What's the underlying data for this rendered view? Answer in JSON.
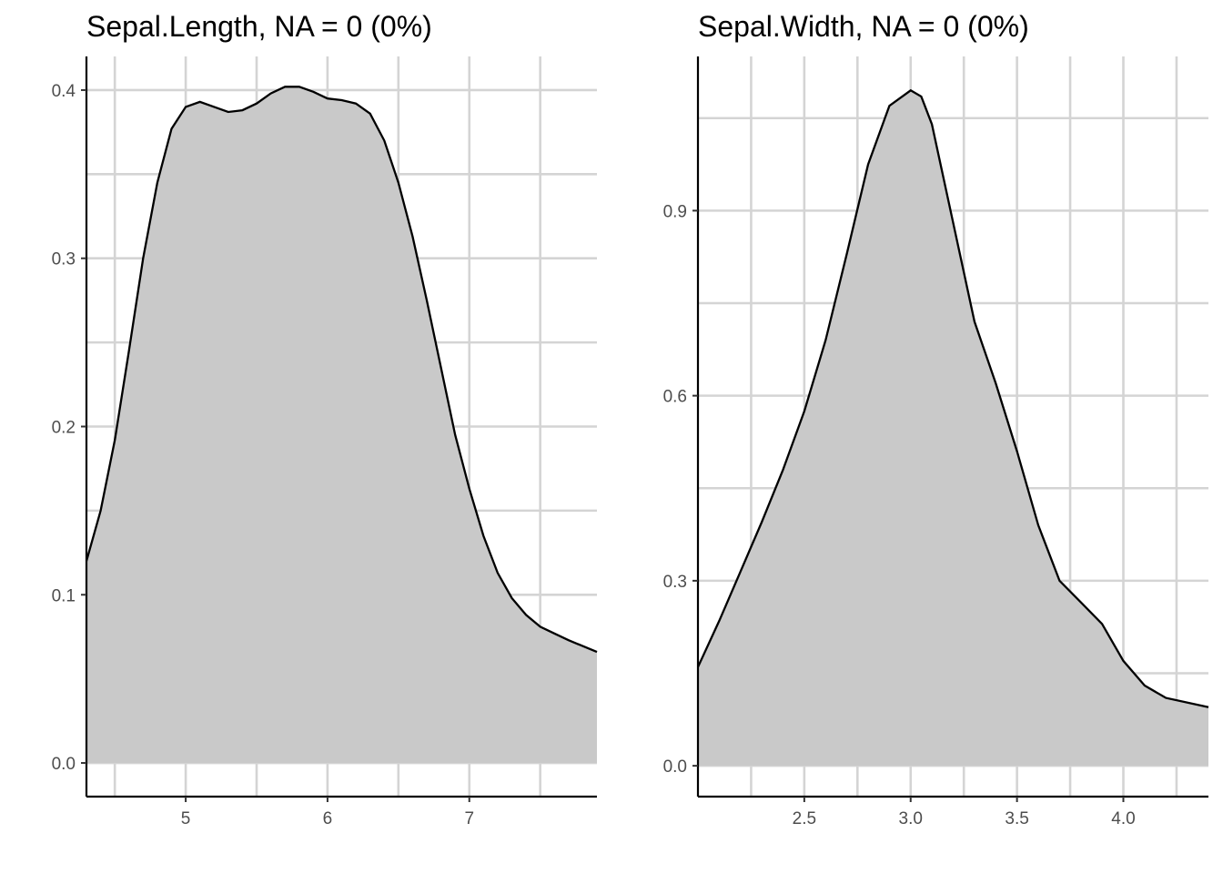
{
  "chart_data": [
    {
      "type": "area",
      "title": "Sepal.Length, NA = 0 (0%)",
      "xlabel": "",
      "ylabel": "",
      "xlim": [
        4.3,
        7.9
      ],
      "ylim": [
        -0.02,
        0.42
      ],
      "x_ticks": [
        5,
        6,
        7
      ],
      "x_tick_labels": [
        "5",
        "6",
        "7"
      ],
      "y_ticks": [
        0.0,
        0.1,
        0.2,
        0.3,
        0.4
      ],
      "y_tick_labels": [
        "0.0",
        "0.1",
        "0.2",
        "0.3",
        "0.4"
      ],
      "grid": true,
      "fill_color": "#c9c9c9",
      "line_color": "#000000",
      "series": [
        {
          "x": [
            4.3,
            4.4,
            4.5,
            4.6,
            4.7,
            4.8,
            4.9,
            5.0,
            5.1,
            5.2,
            5.3,
            5.4,
            5.5,
            5.6,
            5.7,
            5.8,
            5.9,
            6.0,
            6.1,
            6.2,
            6.3,
            6.4,
            6.5,
            6.6,
            6.7,
            6.8,
            6.9,
            7.0,
            7.1,
            7.2,
            7.3,
            7.4,
            7.5,
            7.6,
            7.7,
            7.9
          ],
          "y": [
            0.12,
            0.15,
            0.192,
            0.245,
            0.3,
            0.345,
            0.377,
            0.39,
            0.393,
            0.39,
            0.387,
            0.388,
            0.392,
            0.398,
            0.402,
            0.402,
            0.399,
            0.395,
            0.394,
            0.392,
            0.386,
            0.37,
            0.345,
            0.313,
            0.275,
            0.235,
            0.195,
            0.163,
            0.135,
            0.113,
            0.098,
            0.088,
            0.081,
            0.077,
            0.073,
            0.066
          ]
        }
      ]
    },
    {
      "type": "area",
      "title": "Sepal.Width, NA = 0 (0%)",
      "xlabel": "",
      "ylabel": "",
      "xlim": [
        2.0,
        4.4
      ],
      "ylim": [
        -0.05,
        1.15
      ],
      "x_ticks": [
        2.5,
        3.0,
        3.5,
        4.0
      ],
      "x_tick_labels": [
        "2.5",
        "3.0",
        "3.5",
        "4.0"
      ],
      "y_ticks": [
        0.0,
        0.3,
        0.6,
        0.9
      ],
      "y_tick_labels": [
        "0.0",
        "0.3",
        "0.6",
        "0.9"
      ],
      "grid": true,
      "fill_color": "#c9c9c9",
      "line_color": "#000000",
      "series": [
        {
          "x": [
            2.0,
            2.1,
            2.2,
            2.3,
            2.4,
            2.5,
            2.6,
            2.7,
            2.8,
            2.9,
            3.0,
            3.05,
            3.1,
            3.2,
            3.3,
            3.4,
            3.5,
            3.6,
            3.7,
            3.8,
            3.9,
            4.0,
            4.1,
            4.2,
            4.4
          ],
          "y": [
            0.16,
            0.235,
            0.315,
            0.395,
            0.48,
            0.575,
            0.69,
            0.83,
            0.975,
            1.07,
            1.095,
            1.085,
            1.04,
            0.88,
            0.72,
            0.62,
            0.51,
            0.39,
            0.3,
            0.265,
            0.23,
            0.17,
            0.13,
            0.11,
            0.095
          ]
        }
      ]
    }
  ]
}
